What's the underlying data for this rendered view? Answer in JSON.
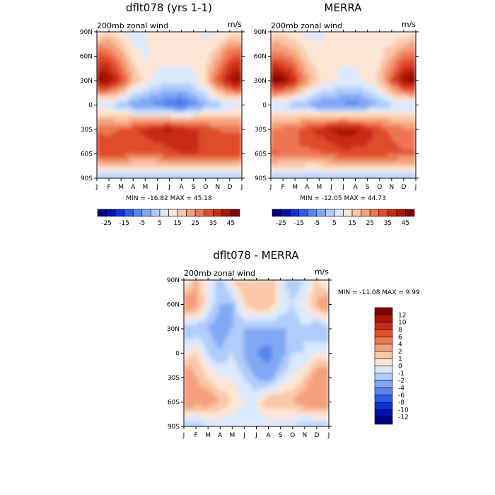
{
  "panels": [
    {
      "id": "model",
      "title": "dflt078 (yrs 1-1)",
      "variable": "200mb zonal wind",
      "units": "m/s",
      "stats": "MIN = -16.82 MAX =  45.18"
    },
    {
      "id": "merra",
      "title": "MERRA",
      "variable": "200mb zonal wind",
      "units": "m/s",
      "stats": "MIN = -12.05 MAX =  44.73"
    },
    {
      "id": "diff",
      "title": "dflt078 - MERRA",
      "variable": "200mb zonal wind",
      "units": "m/s",
      "stats": "MIN = -11.08 MAX =    9.99"
    }
  ],
  "x_ticks": [
    "J",
    "F",
    "M",
    "A",
    "M",
    "J",
    "J",
    "A",
    "S",
    "O",
    "N",
    "D",
    "J"
  ],
  "y_ticks": [
    "90N",
    "60N",
    "30N",
    "0",
    "30S",
    "60S",
    "90S"
  ],
  "field_colorbar": {
    "colors": [
      "#00007f",
      "#0010b0",
      "#0a32d6",
      "#2e5ce8",
      "#5784f0",
      "#82a8f5",
      "#b0ccfa",
      "#dbe8fd",
      "#fde5d5",
      "#fac7a9",
      "#f5a07c",
      "#ee7752",
      "#e04c2c",
      "#c92c12",
      "#a81606",
      "#830000"
    ],
    "labels": [
      "-25",
      "-15",
      "-5",
      "5",
      "15",
      "25",
      "35",
      "45"
    ]
  },
  "diff_colorbar": {
    "colors": [
      "#00007f",
      "#0010b0",
      "#0a32d6",
      "#2e5ce8",
      "#5784f0",
      "#82a8f5",
      "#b0ccfa",
      "#dbe8fd",
      "#fde5d5",
      "#fac7a9",
      "#f5a07c",
      "#ee7752",
      "#e04c2c",
      "#c92c12",
      "#a81606",
      "#830000"
    ],
    "labels": [
      "12",
      "10",
      "8",
      "6",
      "4",
      "2",
      "1",
      "0",
      "-1",
      "-2",
      "-4",
      "-6",
      "-8",
      "-10",
      "-12"
    ]
  },
  "chart_data": [
    {
      "type": "heatmap",
      "title": "dflt078 (yrs 1-1)",
      "subtitle": "200mb zonal wind",
      "units": "m/s",
      "x": [
        "J",
        "F",
        "M",
        "A",
        "M",
        "J",
        "J",
        "A",
        "S",
        "O",
        "N",
        "D",
        "J"
      ],
      "y": [
        "90N",
        "60N",
        "30N",
        "0",
        "30S",
        "60S",
        "90S"
      ],
      "values": [
        [
          7,
          10,
          6,
          2,
          5,
          8,
          10,
          10,
          8,
          4,
          3,
          7,
          7
        ],
        [
          28,
          25,
          18,
          8,
          4,
          6,
          8,
          8,
          6,
          7,
          15,
          24,
          28
        ],
        [
          42,
          40,
          30,
          15,
          8,
          4,
          2,
          2,
          4,
          10,
          25,
          38,
          42
        ],
        [
          0,
          0,
          -4,
          -8,
          -10,
          -12,
          -15,
          -17,
          -12,
          -6,
          -3,
          0,
          0
        ],
        [
          24,
          24,
          25,
          28,
          32,
          35,
          36,
          34,
          32,
          28,
          25,
          24,
          24
        ],
        [
          30,
          28,
          28,
          26,
          25,
          26,
          28,
          30,
          30,
          30,
          30,
          30,
          30
        ],
        [
          -6,
          -6,
          -5,
          -5,
          -5,
          -5,
          -5,
          -5,
          -5,
          -5,
          -6,
          -6,
          -6
        ]
      ],
      "min": -16.82,
      "max": 45.18,
      "colorbar": {
        "levels": [
          -25,
          -15,
          -5,
          5,
          15,
          25,
          35,
          45
        ]
      }
    },
    {
      "type": "heatmap",
      "title": "MERRA",
      "subtitle": "200mb zonal wind",
      "units": "m/s",
      "x": [
        "J",
        "F",
        "M",
        "A",
        "M",
        "J",
        "J",
        "A",
        "S",
        "O",
        "N",
        "D",
        "J"
      ],
      "y": [
        "90N",
        "60N",
        "30N",
        "0",
        "30S",
        "60S",
        "90S"
      ],
      "values": [
        [
          8,
          8,
          6,
          4,
          4,
          6,
          8,
          8,
          8,
          6,
          4,
          6,
          8
        ],
        [
          24,
          22,
          18,
          10,
          6,
          5,
          6,
          6,
          6,
          8,
          15,
          22,
          24
        ],
        [
          44,
          42,
          32,
          18,
          10,
          6,
          4,
          4,
          6,
          12,
          26,
          40,
          44
        ],
        [
          0,
          -1,
          -3,
          -6,
          -9,
          -10,
          -11,
          -12,
          -9,
          -5,
          -2,
          0,
          0
        ],
        [
          20,
          22,
          24,
          28,
          32,
          36,
          38,
          37,
          33,
          28,
          24,
          21,
          20
        ],
        [
          26,
          25,
          25,
          24,
          24,
          26,
          28,
          28,
          28,
          28,
          27,
          26,
          26
        ],
        [
          -4,
          -4,
          -4,
          -4,
          -4,
          -4,
          -4,
          -4,
          -4,
          -4,
          -4,
          -4,
          -4
        ]
      ],
      "min": -12.05,
      "max": 44.73,
      "colorbar": {
        "levels": [
          -25,
          -15,
          -5,
          5,
          15,
          25,
          35,
          45
        ]
      }
    },
    {
      "type": "heatmap",
      "title": "dflt078 - MERRA",
      "subtitle": "200mb zonal wind",
      "units": "m/s",
      "x": [
        "J",
        "F",
        "M",
        "A",
        "M",
        "J",
        "J",
        "A",
        "S",
        "O",
        "N",
        "D",
        "J"
      ],
      "y": [
        "90N",
        "60N",
        "30N",
        "0",
        "30S",
        "60S",
        "90S"
      ],
      "values": [
        [
          -1,
          2,
          0,
          -2,
          1,
          2,
          2,
          2,
          0,
          -2,
          -1,
          1,
          -1
        ],
        [
          4,
          3,
          0,
          -2,
          -2,
          1,
          2,
          2,
          0,
          -1,
          0,
          2,
          4
        ],
        [
          -2,
          -2,
          -2,
          -3,
          -2,
          -2,
          -2,
          -2,
          -2,
          -2,
          -1,
          -2,
          -2
        ],
        [
          0,
          1,
          -1,
          -2,
          -1,
          -2,
          -4,
          -5,
          -3,
          -1,
          -1,
          0,
          0
        ],
        [
          4,
          2,
          1,
          0,
          0,
          -1,
          -2,
          -3,
          -1,
          0,
          1,
          3,
          4
        ],
        [
          4,
          3,
          3,
          2,
          1,
          0,
          0,
          2,
          2,
          2,
          3,
          4,
          4
        ],
        [
          -2,
          -2,
          -1,
          -1,
          -1,
          -1,
          -1,
          -1,
          -1,
          -1,
          -2,
          -2,
          -2
        ]
      ],
      "min": -11.08,
      "max": 9.99,
      "colorbar": {
        "levels": [
          12,
          10,
          8,
          6,
          4,
          2,
          1,
          0,
          -1,
          -2,
          -4,
          -6,
          -8,
          -10,
          -12
        ]
      }
    }
  ]
}
